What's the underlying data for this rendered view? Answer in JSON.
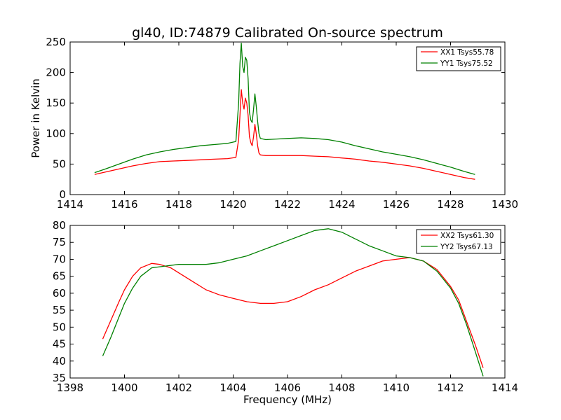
{
  "chart_data": [
    {
      "type": "line",
      "title": "gl40, ID:74879 Calibrated On-source spectrum",
      "xlabel": "",
      "ylabel": "Power in Kelvin",
      "xlim": [
        1414,
        1430
      ],
      "ylim": [
        0,
        250
      ],
      "xticks": [
        1414,
        1416,
        1418,
        1420,
        1422,
        1424,
        1426,
        1428,
        1430
      ],
      "yticks": [
        0,
        50,
        100,
        150,
        200,
        250
      ],
      "grid": false,
      "legend_position": "top-right",
      "series": [
        {
          "name": "XX1 Tsys55.78",
          "color": "#ff0000",
          "x": [
            1414.9,
            1415.3,
            1415.8,
            1416.3,
            1416.8,
            1417.3,
            1417.8,
            1418.3,
            1418.8,
            1419.3,
            1419.8,
            1420.1,
            1420.2,
            1420.25,
            1420.3,
            1420.35,
            1420.4,
            1420.45,
            1420.5,
            1420.55,
            1420.6,
            1420.65,
            1420.7,
            1420.75,
            1420.8,
            1420.85,
            1420.9,
            1420.95,
            1421.0,
            1421.2,
            1421.6,
            1422.0,
            1422.5,
            1423.0,
            1423.5,
            1424.0,
            1424.5,
            1425.0,
            1425.5,
            1426.0,
            1426.5,
            1427.0,
            1427.5,
            1428.0,
            1428.5,
            1428.9
          ],
          "y": [
            33,
            37,
            42,
            47,
            51,
            54,
            55,
            56,
            57,
            58,
            59,
            61,
            90,
            130,
            172,
            150,
            140,
            158,
            150,
            130,
            95,
            85,
            80,
            95,
            115,
            100,
            80,
            68,
            65,
            64,
            64,
            64,
            64,
            63,
            62,
            60,
            58,
            55,
            53,
            50,
            47,
            43,
            38,
            33,
            28,
            25
          ]
        },
        {
          "name": "YY1 Tsys75.52",
          "color": "#008000",
          "x": [
            1414.9,
            1415.3,
            1415.8,
            1416.3,
            1416.8,
            1417.3,
            1417.8,
            1418.3,
            1418.8,
            1419.3,
            1419.8,
            1420.1,
            1420.2,
            1420.25,
            1420.3,
            1420.35,
            1420.4,
            1420.45,
            1420.5,
            1420.55,
            1420.6,
            1420.65,
            1420.7,
            1420.75,
            1420.8,
            1420.85,
            1420.9,
            1420.95,
            1421.0,
            1421.2,
            1421.6,
            1422.0,
            1422.5,
            1423.0,
            1423.5,
            1424.0,
            1424.5,
            1425.0,
            1425.5,
            1426.0,
            1426.5,
            1427.0,
            1427.5,
            1428.0,
            1428.5,
            1428.9
          ],
          "y": [
            36,
            42,
            50,
            58,
            65,
            70,
            74,
            77,
            80,
            82,
            84,
            87,
            150,
            215,
            248,
            210,
            200,
            225,
            220,
            190,
            135,
            122,
            118,
            140,
            165,
            145,
            120,
            100,
            92,
            90,
            91,
            92,
            93,
            92,
            90,
            86,
            80,
            75,
            70,
            66,
            62,
            57,
            51,
            45,
            38,
            33
          ]
        }
      ]
    },
    {
      "type": "line",
      "title": "",
      "xlabel": "Frequency (MHz)",
      "ylabel": "",
      "xlim": [
        1398,
        1414
      ],
      "ylim": [
        35,
        80
      ],
      "xticks": [
        1398,
        1400,
        1402,
        1404,
        1406,
        1408,
        1410,
        1412,
        1414
      ],
      "yticks": [
        35,
        40,
        45,
        50,
        55,
        60,
        65,
        70,
        75,
        80
      ],
      "grid": false,
      "legend_position": "top-right",
      "series": [
        {
          "name": "XX2 Tsys61.30",
          "color": "#ff0000",
          "x": [
            1399.2,
            1399.5,
            1399.8,
            1400.0,
            1400.3,
            1400.6,
            1401.0,
            1401.3,
            1401.7,
            1402.0,
            1402.5,
            1403.0,
            1403.5,
            1404.0,
            1404.5,
            1405.0,
            1405.5,
            1406.0,
            1406.5,
            1407.0,
            1407.5,
            1408.0,
            1408.5,
            1409.0,
            1409.5,
            1410.0,
            1410.5,
            1411.0,
            1411.5,
            1412.0,
            1412.3,
            1412.6,
            1412.9,
            1413.2
          ],
          "y": [
            46.5,
            52,
            57.5,
            61,
            65,
            67.5,
            68.8,
            68.5,
            67.5,
            66,
            63.5,
            61,
            59.5,
            58.5,
            57.5,
            57,
            57,
            57.5,
            59,
            61,
            62.5,
            64.5,
            66.5,
            68,
            69.5,
            70,
            70.5,
            69.5,
            67,
            62,
            58,
            51.5,
            45,
            38
          ]
        },
        {
          "name": "YY2 Tsys67.13",
          "color": "#008000",
          "x": [
            1399.2,
            1399.5,
            1399.8,
            1400.0,
            1400.3,
            1400.6,
            1401.0,
            1401.5,
            1402.0,
            1402.5,
            1403.0,
            1403.5,
            1404.0,
            1404.5,
            1405.0,
            1405.5,
            1406.0,
            1406.5,
            1407.0,
            1407.5,
            1408.0,
            1408.5,
            1409.0,
            1409.5,
            1410.0,
            1410.5,
            1411.0,
            1411.5,
            1412.0,
            1412.3,
            1412.6,
            1412.9,
            1413.2
          ],
          "y": [
            41.5,
            47,
            53,
            57,
            61.5,
            65,
            67.5,
            68,
            68.5,
            68.5,
            68.5,
            69,
            70,
            71,
            72.5,
            74,
            75.5,
            77,
            78.5,
            79,
            78,
            76,
            74,
            72.5,
            71,
            70.5,
            69.5,
            66.5,
            61.5,
            57,
            50.5,
            43,
            35.5
          ]
        }
      ]
    }
  ]
}
